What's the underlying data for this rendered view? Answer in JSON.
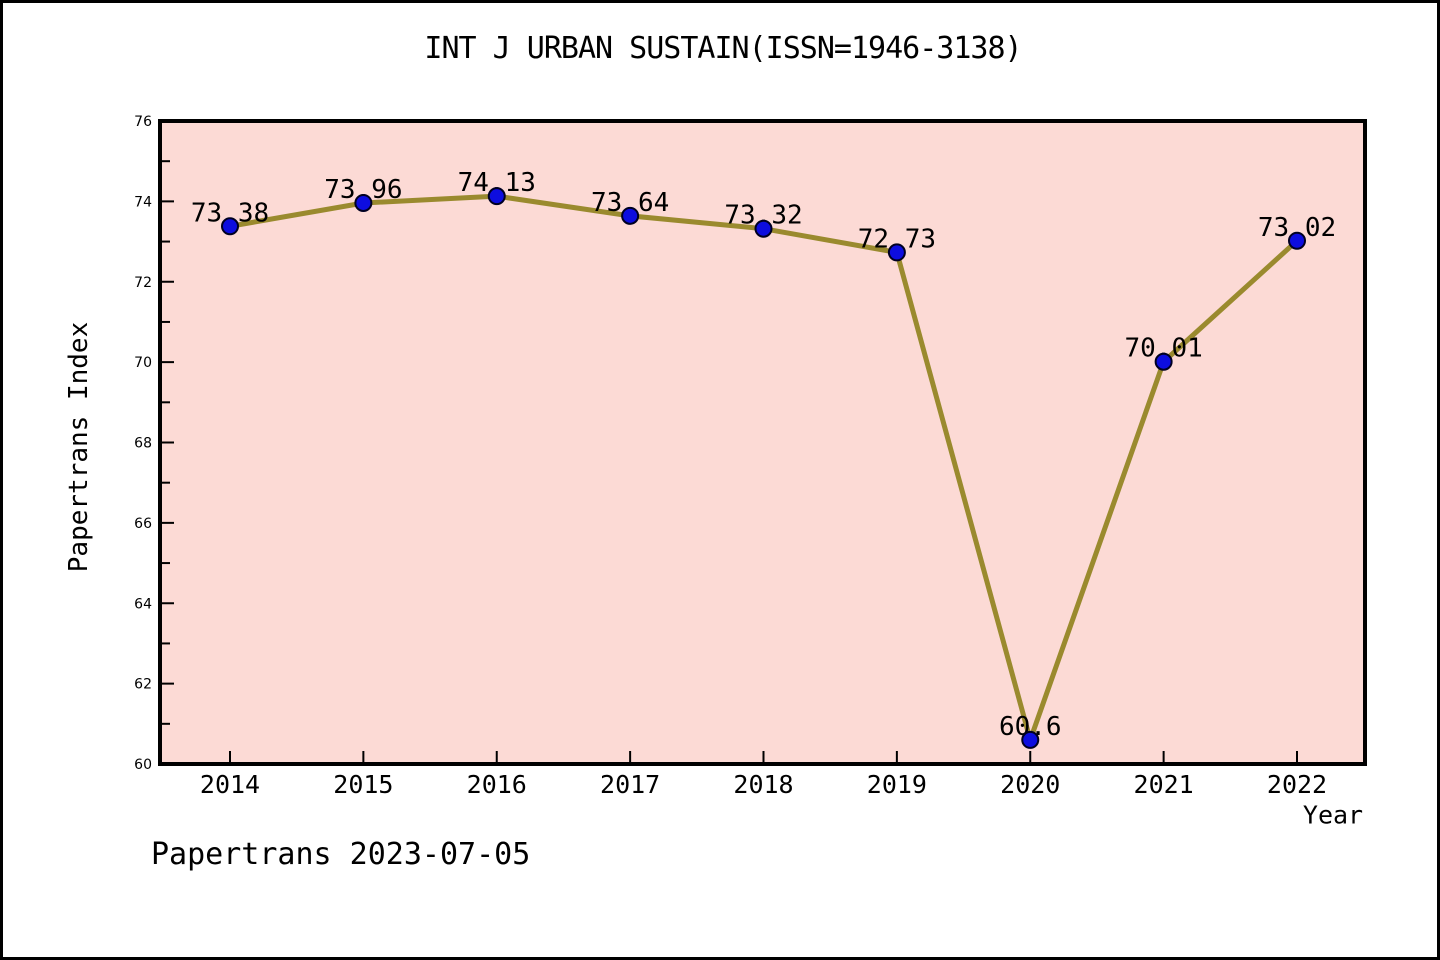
{
  "title": "INT J URBAN SUSTAIN(ISSN=1946-3138)",
  "footer": "Papertrans 2023-07-05",
  "chart_data": {
    "type": "line",
    "title": "INT J URBAN SUSTAIN(ISSN=1946-3138)",
    "xlabel": "Year",
    "ylabel": "Papertrans Index",
    "categories": [
      "2014",
      "2015",
      "2016",
      "2017",
      "2018",
      "2019",
      "2020",
      "2021",
      "2022"
    ],
    "values": [
      73.38,
      73.96,
      74.13,
      73.64,
      73.32,
      72.73,
      60.6,
      70.01,
      73.02
    ],
    "point_labels": [
      "73.38",
      "73.96",
      "74.13",
      "73.64",
      "73.32",
      "72.73",
      "60.6",
      "70.01",
      "73.02"
    ],
    "ylim": [
      60,
      76
    ],
    "yticks_major": [
      60,
      62,
      64,
      66,
      68,
      70,
      72,
      74,
      76
    ],
    "yticks_minor": [
      61,
      63,
      65,
      67,
      69,
      71,
      73,
      75
    ],
    "grid": false,
    "legend": null,
    "annotation": "Papertrans 2023-07-05",
    "colors": {
      "figure_background": "#ffffff",
      "plot_background": "#fcdad5",
      "line": "#9a8a2e",
      "marker_fill": "#0d0ddf",
      "marker_edge": "#000022",
      "axis": "#000000",
      "text": "#000000"
    }
  }
}
